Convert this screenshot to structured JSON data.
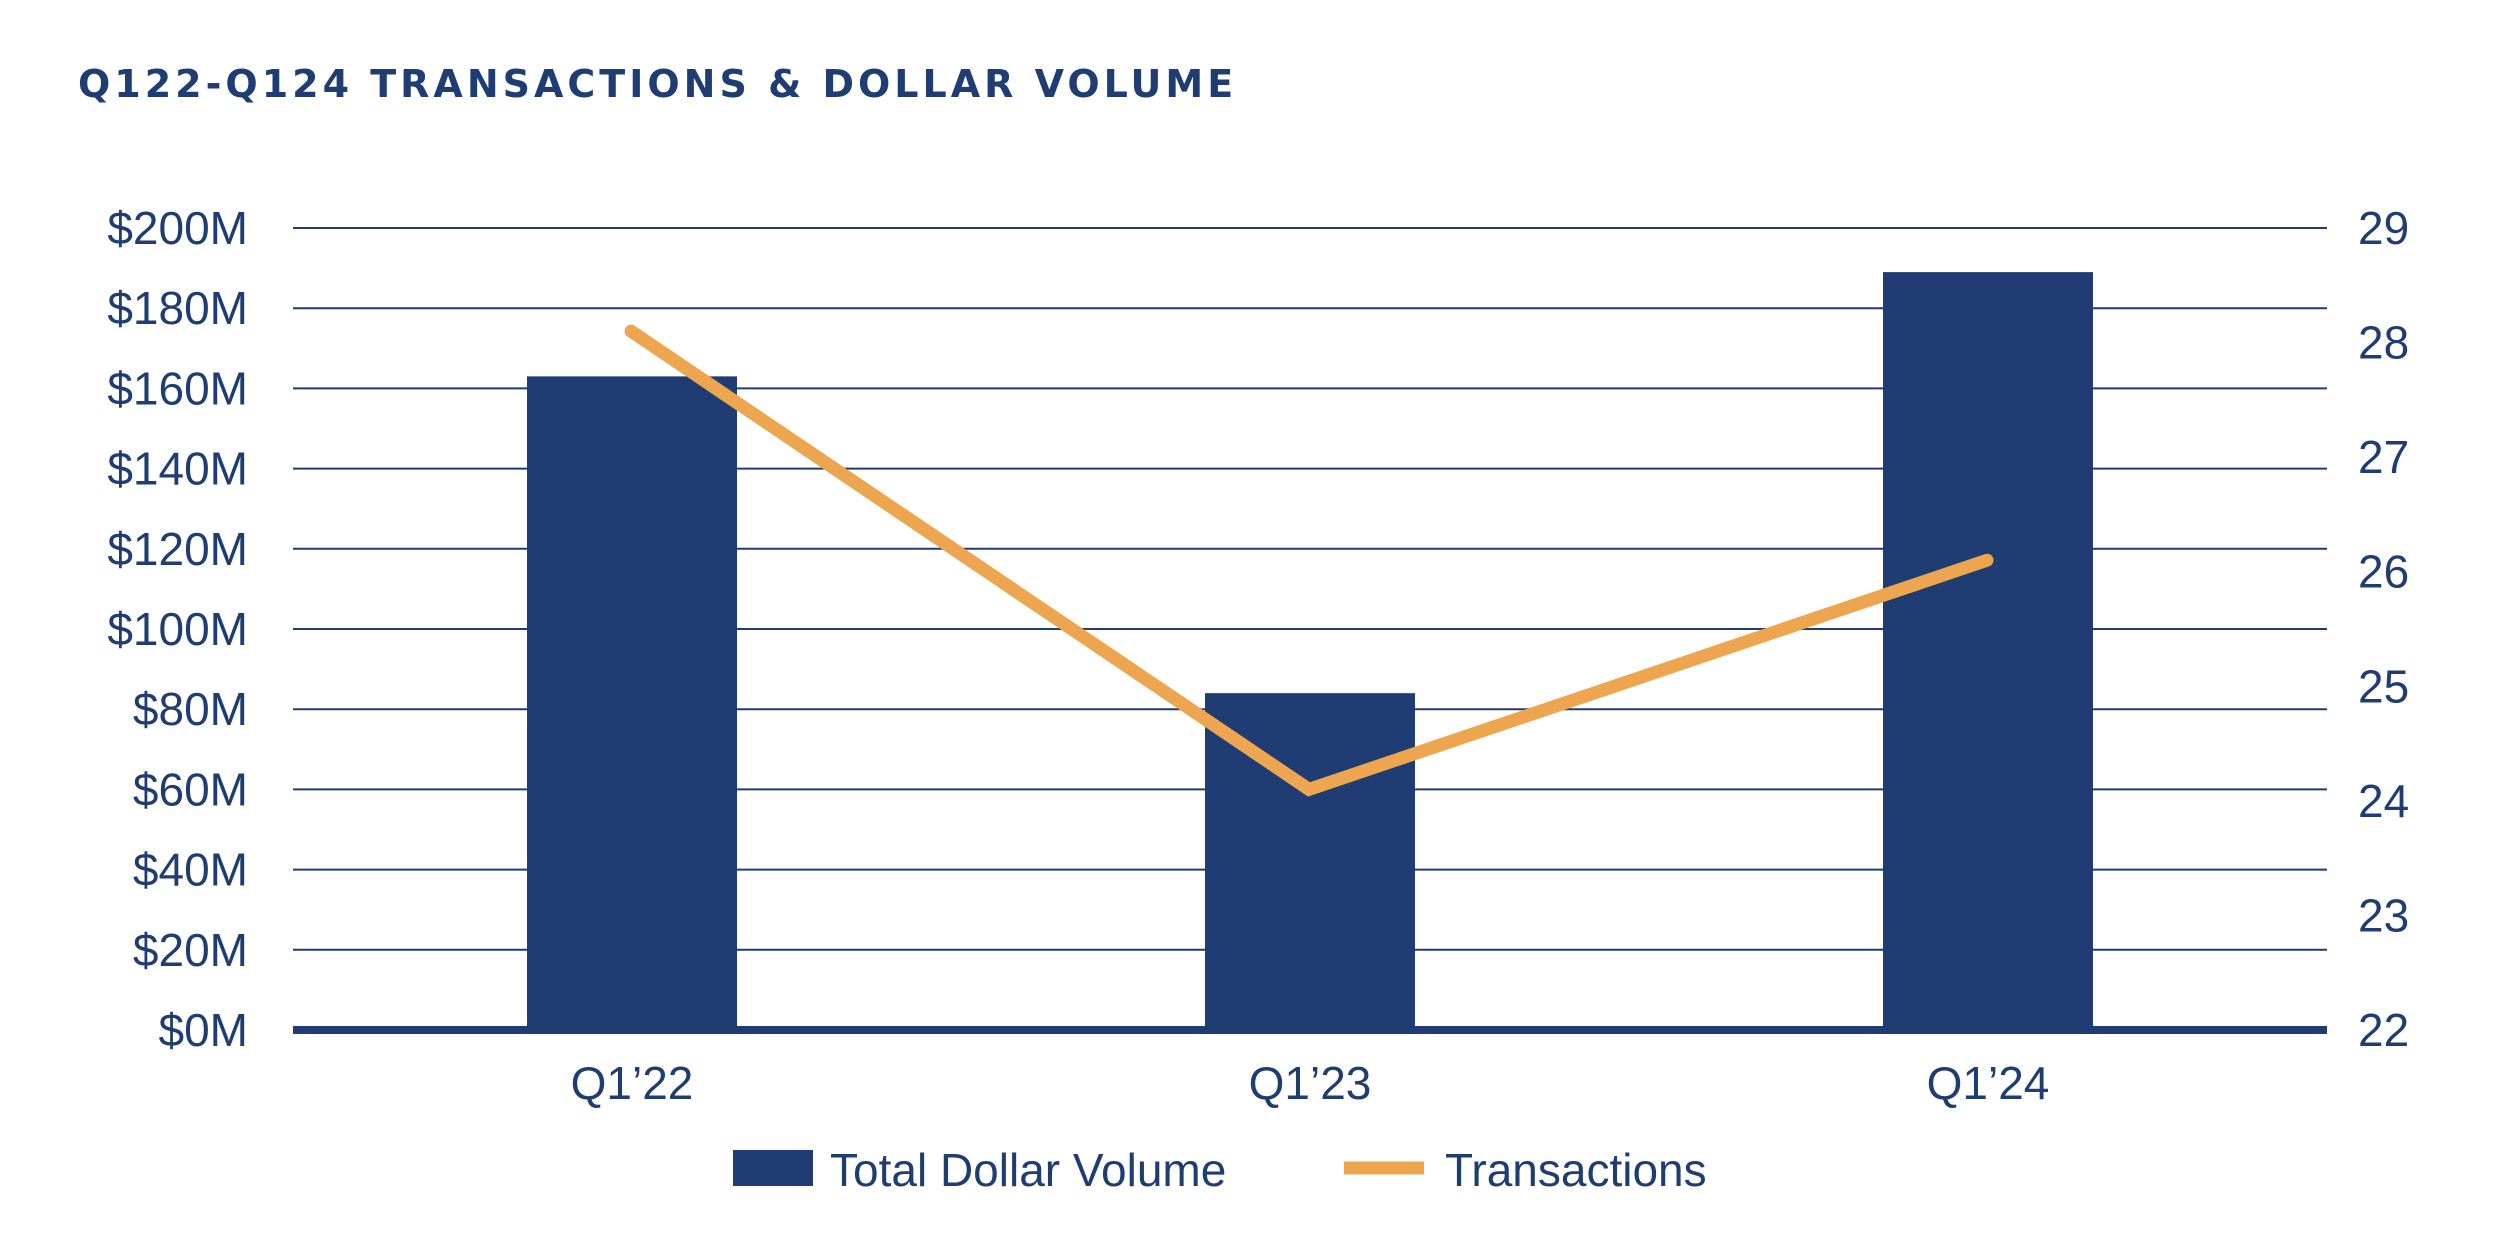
{
  "chart_data": {
    "type": "bar",
    "title": "Q122-Q124 TRANSACTIONS & DOLLAR VOLUME",
    "categories": [
      "Q1’22",
      "Q1’23",
      "Q1’24"
    ],
    "series": [
      {
        "name": "Total Dollar Volume",
        "type": "bar",
        "axis": "left",
        "color": "#1f3d72",
        "values": [
          163,
          84,
          189
        ]
      },
      {
        "name": "Transactions",
        "type": "line",
        "axis": "right",
        "color": "#eda64f",
        "values": [
          28.1,
          24.1,
          26.1
        ]
      }
    ],
    "y_left": {
      "min": 0,
      "max": 200,
      "step": 20,
      "tick_labels": [
        "$0M",
        "$20M",
        "$40M",
        "$60M",
        "$80M",
        "$100M",
        "$120M",
        "$140M",
        "$160M",
        "$180M",
        "$200M"
      ]
    },
    "y_right": {
      "min": 22,
      "max": 29,
      "step": 1,
      "tick_labels": [
        "22",
        "23",
        "24",
        "25",
        "26",
        "27",
        "28",
        "29"
      ]
    },
    "grid": true,
    "legend_position": "bottom-center"
  }
}
